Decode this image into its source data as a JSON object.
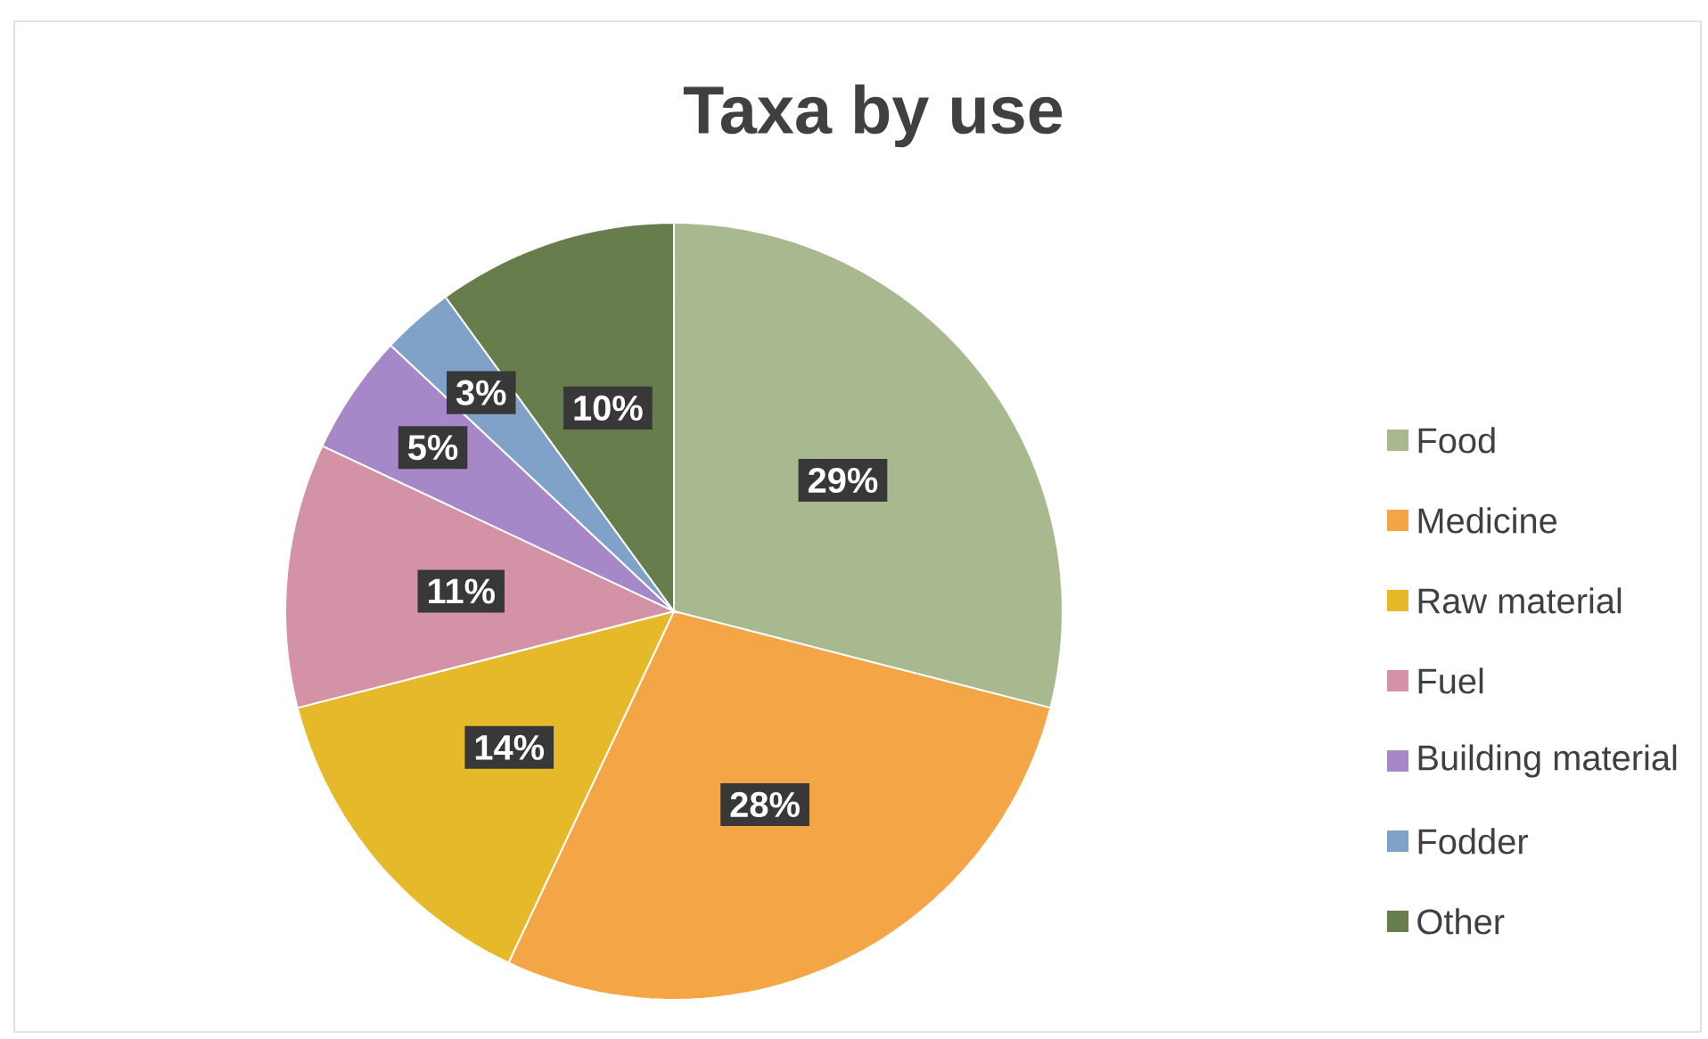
{
  "chart_data": {
    "type": "pie",
    "title": "Taxa by use",
    "categories": [
      "Food",
      "Medicine",
      "Raw material",
      "Fuel",
      "Building material",
      "Fodder",
      "Other"
    ],
    "values": [
      29,
      28,
      14,
      11,
      5,
      3,
      10
    ],
    "value_labels": [
      "29%",
      "28%",
      "14%",
      "11%",
      "5%",
      "3%",
      "10%"
    ],
    "colors": [
      "#a9b98f",
      "#f4a646",
      "#e6b92a",
      "#d492a6",
      "#a688c9",
      "#80a2c9",
      "#677d4c"
    ],
    "legend": "right"
  }
}
